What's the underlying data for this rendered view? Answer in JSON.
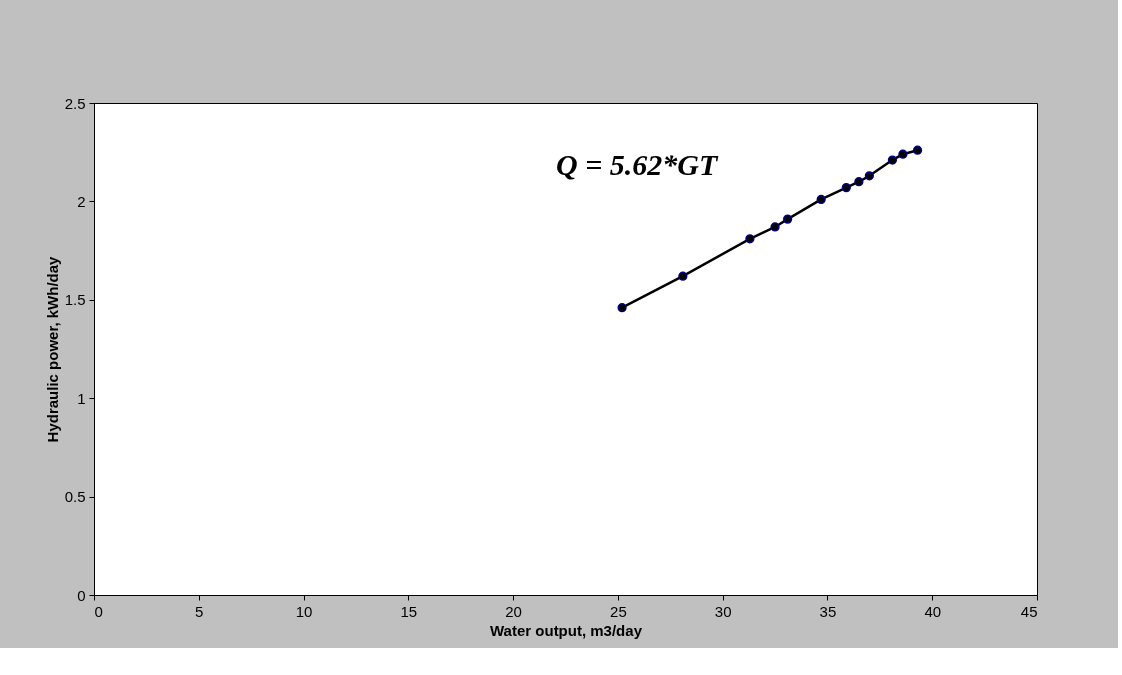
{
  "chart_data": {
    "type": "line",
    "xlabel": "Water output, m3/day",
    "ylabel": "Hydraulic power, kWh/day",
    "annotations": [
      "Q = 5.62*GT"
    ],
    "x": [
      25.2,
      28.1,
      31.3,
      32.5,
      33.1,
      34.7,
      35.9,
      36.5,
      37.0,
      38.1,
      38.6,
      39.3
    ],
    "series": [
      {
        "color": "#000000",
        "values": [
          1.46,
          1.62,
          1.81,
          1.87,
          1.91,
          2.01,
          2.07,
          2.1,
          2.13,
          2.21,
          2.24,
          2.26
        ]
      }
    ],
    "xlim": [
      0,
      45
    ],
    "xticks": [
      0,
      5,
      10,
      15,
      20,
      25,
      30,
      35,
      40,
      45
    ],
    "ylim": [
      0,
      2.5
    ],
    "yticks": [
      0,
      0.5,
      1,
      1.5,
      2,
      2.5
    ],
    "grid": false,
    "marker": "circle",
    "line_style": "solid"
  }
}
